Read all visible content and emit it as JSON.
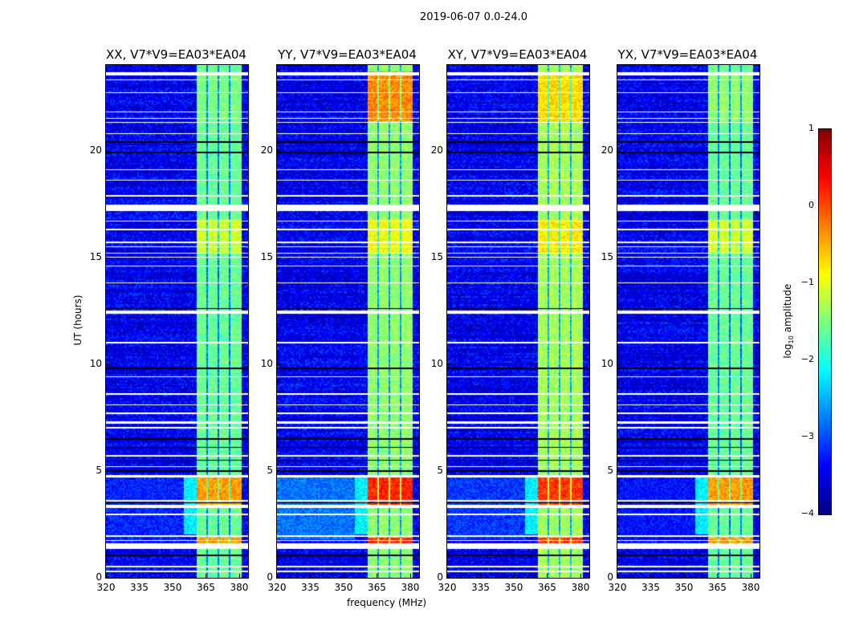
{
  "chart_data": {
    "type": "heatmap",
    "suptitle": "2019-06-07 0.0-24.0",
    "xlabel": "frequency (MHz)",
    "ylabel": "UT (hours)",
    "xlim": [
      320,
      384
    ],
    "ylim": [
      0,
      24
    ],
    "xticks": [
      320,
      335,
      350,
      365,
      380
    ],
    "yticks": [
      0,
      5,
      10,
      15,
      20
    ],
    "panels": [
      {
        "title": "XX, V7*V9=EA03*EA04",
        "band_level": -1.6,
        "burst_level": -0.4,
        "late_level": -1.5,
        "lowfreq_level": -3.2
      },
      {
        "title": "YY, V7*V9=EA03*EA04",
        "band_level": -1.4,
        "burst_level": 0.2,
        "late_level": -0.3,
        "lowfreq_level": -2.8
      },
      {
        "title": "XY, V7*V9=EA03*EA04",
        "band_level": -1.3,
        "burst_level": 0.1,
        "late_level": -0.7,
        "lowfreq_level": -3.1
      },
      {
        "title": "YX, V7*V9=EA03*EA04",
        "band_level": -1.6,
        "burst_level": -0.4,
        "late_level": -1.4,
        "lowfreq_level": -3.3
      }
    ],
    "rfi_band_mhz": [
      361,
      381
    ],
    "channel_gaps_mhz": [
      365.5,
      370.5,
      375.5
    ],
    "burst_hours": [
      3.4,
      4.7
    ],
    "flagged_hours": [
      [
        0.25,
        0.33
      ],
      [
        0.5,
        0.58
      ],
      [
        1.35,
        1.62
      ],
      [
        1.72,
        1.78
      ],
      [
        1.92,
        1.98
      ],
      [
        2.92,
        3.0
      ],
      [
        3.28,
        3.42
      ],
      [
        3.58,
        3.63
      ],
      [
        4.7,
        4.8
      ],
      [
        5.18,
        5.23
      ],
      [
        5.68,
        5.73
      ],
      [
        6.98,
        7.05
      ],
      [
        7.2,
        7.32
      ],
      [
        7.68,
        7.72
      ],
      [
        8.08,
        8.13
      ],
      [
        8.58,
        8.63
      ],
      [
        9.38,
        9.42
      ],
      [
        10.98,
        11.03
      ],
      [
        12.35,
        12.5
      ],
      [
        13.78,
        13.82
      ],
      [
        14.58,
        14.62
      ],
      [
        14.98,
        15.03
      ],
      [
        15.18,
        15.22
      ],
      [
        15.48,
        15.53
      ],
      [
        15.68,
        15.72
      ],
      [
        16.28,
        16.33
      ],
      [
        16.68,
        16.72
      ],
      [
        17.15,
        17.45
      ],
      [
        17.85,
        17.92
      ],
      [
        18.58,
        18.62
      ],
      [
        19.08,
        19.12
      ],
      [
        20.78,
        20.82
      ],
      [
        21.28,
        21.32
      ],
      [
        21.48,
        21.52
      ],
      [
        21.78,
        21.82
      ],
      [
        22.68,
        22.72
      ],
      [
        23.28,
        23.32
      ],
      [
        23.5,
        23.65
      ]
    ],
    "dark_hours": [
      1.05,
      3.5,
      5.0,
      5.5,
      6.1,
      6.5,
      9.8,
      12.6,
      19.9,
      20.4
    ],
    "colorbar": {
      "label": "log10 amplitude",
      "label_base": "log",
      "label_sub": "10",
      "label_rest": " amplitude",
      "range": [
        -4,
        1
      ],
      "ticks": [
        "1",
        "0",
        "−1",
        "−2",
        "−3",
        "−4"
      ],
      "colormap": "jet"
    }
  }
}
